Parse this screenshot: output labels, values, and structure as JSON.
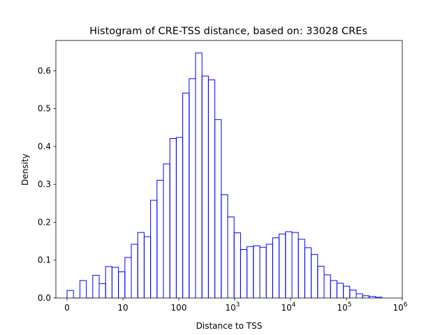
{
  "chart_data": {
    "type": "histogram",
    "title": "Histogram of CRE-TSS distance, based on: 33028 CREs",
    "xlabel": "Distance to TSS",
    "ylabel": "Density",
    "x_scale": "symlog",
    "xlim": [
      -0.2,
      6
    ],
    "ylim": [
      0,
      0.68
    ],
    "grid": false,
    "legend": "none",
    "line_color": "#0000ff",
    "x_ticks": [
      {
        "pos": 0,
        "label": "0",
        "exp": ""
      },
      {
        "pos": 1,
        "label": "10",
        "exp": ""
      },
      {
        "pos": 2,
        "label": "100",
        "exp": ""
      },
      {
        "pos": 3,
        "label": "10",
        "exp": "3"
      },
      {
        "pos": 4,
        "label": "10",
        "exp": "4"
      },
      {
        "pos": 5,
        "label": "10",
        "exp": "5"
      },
      {
        "pos": 6,
        "label": "10",
        "exp": "6"
      }
    ],
    "y_ticks": [
      {
        "value": 0.0,
        "label": "0.0"
      },
      {
        "value": 0.1,
        "label": "0.1"
      },
      {
        "value": 0.2,
        "label": "0.2"
      },
      {
        "value": 0.3,
        "label": "0.3"
      },
      {
        "value": 0.4,
        "label": "0.4"
      },
      {
        "value": 0.5,
        "label": "0.5"
      },
      {
        "value": 0.6,
        "label": "0.6"
      }
    ],
    "bin_edges": [
      0,
      0.115,
      0.23,
      0.345,
      0.46,
      0.575,
      0.69,
      0.805,
      0.92,
      1.035,
      1.15,
      1.265,
      1.38,
      1.495,
      1.61,
      1.725,
      1.84,
      1.955,
      2.07,
      2.185,
      2.3,
      2.415,
      2.53,
      2.645,
      2.76,
      2.875,
      2.99,
      3.105,
      3.22,
      3.335,
      3.45,
      3.565,
      3.68,
      3.795,
      3.91,
      4.025,
      4.14,
      4.255,
      4.37,
      4.485,
      4.6,
      4.715,
      4.83,
      4.945,
      5.06,
      5.175,
      5.29,
      5.405,
      5.52,
      5.635
    ],
    "densities": [
      0.02,
      0.0,
      0.046,
      0.0,
      0.06,
      0.038,
      0.083,
      0.081,
      0.069,
      0.107,
      0.142,
      0.173,
      0.162,
      0.258,
      0.311,
      0.354,
      0.421,
      0.424,
      0.541,
      0.579,
      0.647,
      0.586,
      0.576,
      0.471,
      0.273,
      0.214,
      0.172,
      0.128,
      0.136,
      0.138,
      0.134,
      0.142,
      0.159,
      0.169,
      0.175,
      0.173,
      0.155,
      0.133,
      0.115,
      0.084,
      0.061,
      0.046,
      0.039,
      0.031,
      0.021,
      0.011,
      0.006,
      0.004,
      0.002
    ]
  }
}
